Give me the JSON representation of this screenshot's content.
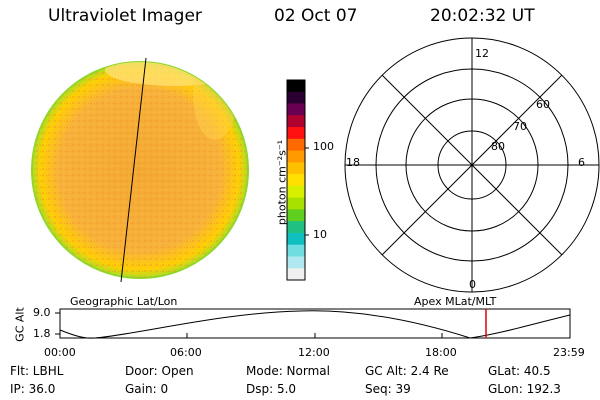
{
  "header": {
    "title": "Ultraviolet Imager",
    "date": "02 Oct 07",
    "time": "20:02:32 UT"
  },
  "colorbar": {
    "units": "photon cm⁻²s⁻¹",
    "tick_labels": [
      "100",
      "10"
    ],
    "colors": [
      "#000000",
      "#2a0033",
      "#6a0050",
      "#b00030",
      "#ff1010",
      "#ff6a00",
      "#ff9a00",
      "#ffc000",
      "#ffe000",
      "#d8f000",
      "#a8e000",
      "#60d020",
      "#20c080",
      "#10c0c0",
      "#70dde0",
      "#b0e8f0",
      "#f0f0f0"
    ]
  },
  "polar_grid": {
    "mlt_labels": {
      "top": "12",
      "left": "18",
      "right": "6",
      "bottom": "0"
    },
    "lat_labels": [
      "60",
      "70",
      "80"
    ]
  },
  "plot": {
    "left_caption": "Geographic Lat/Lon",
    "right_caption": "Apex MLat/MLT",
    "y_axis_label": "GC Alt",
    "y_ticks": [
      "9.0",
      "1.8"
    ],
    "x_ticks": [
      "00:00",
      "06:00",
      "12:00",
      "18:00",
      "23:59"
    ]
  },
  "status": {
    "filter": "Flt: LBHL",
    "ip": "IP: 36.0",
    "door": "Door: Open",
    "gain": "Gain:  0",
    "mode": "Mode: Normal",
    "dsp": "Dsp:    5.0",
    "gc_alt": "GC Alt: 2.4 Re",
    "seq": "Seq: 39",
    "glat": "GLat:  40.5",
    "glon": "GLon: 192.3"
  },
  "colors": {
    "disk_main": "#f7b03a",
    "disk_edge": "#9fe01a",
    "disk_limb": "#ffd200",
    "marker": "#e00000"
  }
}
